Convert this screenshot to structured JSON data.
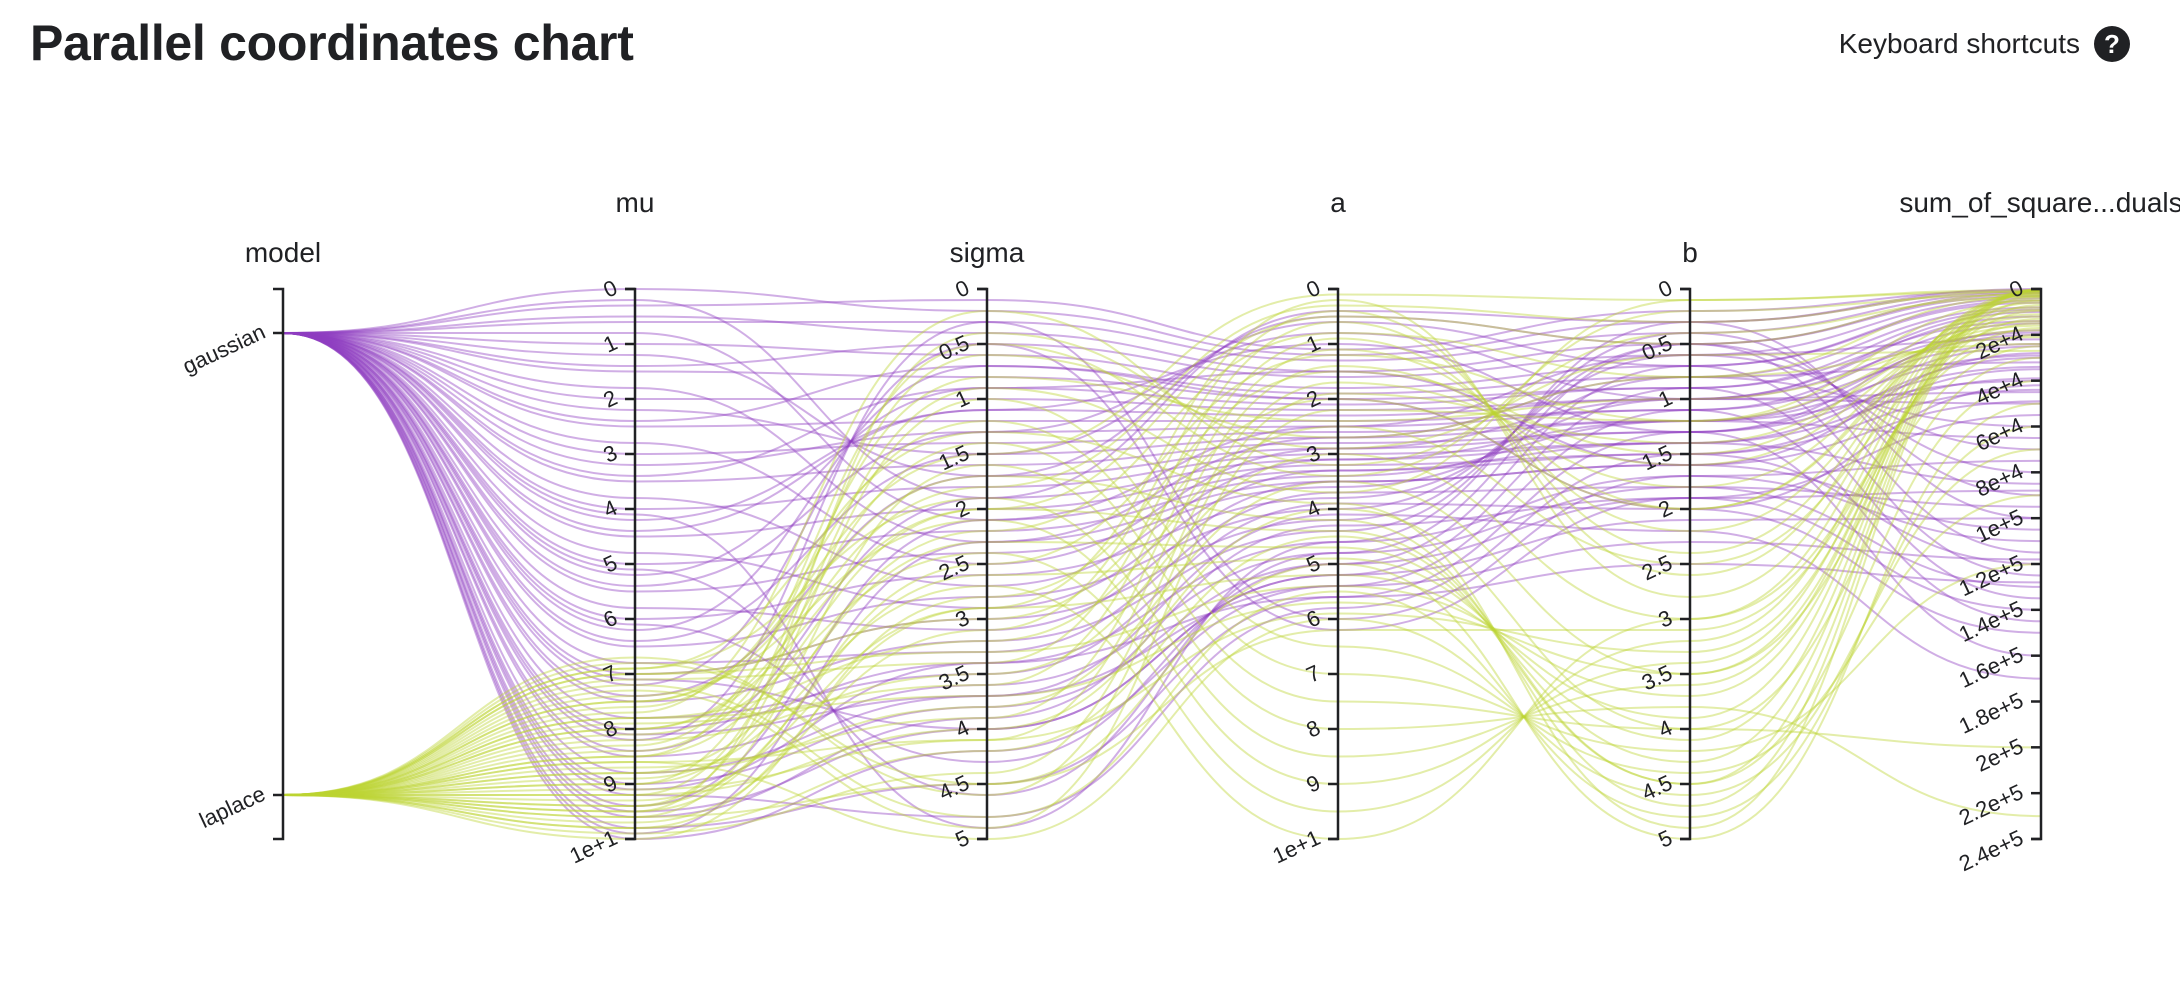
{
  "header": {
    "title": "Parallel coordinates chart",
    "shortcuts_label": "Keyboard shortcuts",
    "help_icon": "help-circle-icon"
  },
  "colors": {
    "gaussian": "#8e3ec0",
    "laplace": "#bcd431",
    "axis": "#202124"
  },
  "chart_data": {
    "type": "parallel-coordinates",
    "title": "Parallel coordinates chart",
    "axes": [
      {
        "key": "model",
        "label": "model",
        "type": "categorical",
        "categories": [
          "gaussian",
          "laplace"
        ]
      },
      {
        "key": "mu",
        "label": "mu",
        "type": "linear",
        "range": [
          0,
          10
        ],
        "ticks": [
          "0",
          "1",
          "2",
          "3",
          "4",
          "5",
          "6",
          "7",
          "8",
          "9",
          "1e+1"
        ]
      },
      {
        "key": "sigma",
        "label": "sigma",
        "type": "linear",
        "range": [
          0,
          5
        ],
        "ticks": [
          "0",
          "0.5",
          "1",
          "1.5",
          "2",
          "2.5",
          "3",
          "3.5",
          "4",
          "4.5",
          "5"
        ]
      },
      {
        "key": "a",
        "label": "a",
        "type": "linear",
        "range": [
          0,
          10
        ],
        "ticks": [
          "0",
          "1",
          "2",
          "3",
          "4",
          "5",
          "6",
          "7",
          "8",
          "9",
          "1e+1"
        ]
      },
      {
        "key": "b",
        "label": "b",
        "type": "linear",
        "range": [
          0,
          5
        ],
        "ticks": [
          "0",
          "0.5",
          "1",
          "1.5",
          "2",
          "2.5",
          "3",
          "3.5",
          "4",
          "4.5",
          "5"
        ]
      },
      {
        "key": "ssr",
        "label": "sum_of_square...duals",
        "type": "linear",
        "range": [
          0,
          240000
        ],
        "ticks": [
          "0",
          "2e+4",
          "4e+4",
          "6e+4",
          "8e+4",
          "1e+5",
          "1.2e+5",
          "1.4e+5",
          "1.6e+5",
          "1.8e+5",
          "2e+5",
          "2.2e+5",
          "2.4e+5"
        ]
      }
    ],
    "series": [
      {
        "name": "gaussian",
        "color_key": "gaussian",
        "records": [
          [
            0.0,
            0.2,
            1.2,
            0.3,
            0
          ],
          [
            0.5,
            0.4,
            1.5,
            0.5,
            2000
          ],
          [
            1.0,
            0.6,
            1.8,
            0.7,
            5000
          ],
          [
            1.5,
            0.8,
            2.0,
            0.9,
            9000
          ],
          [
            2.0,
            1.0,
            2.2,
            1.0,
            12000
          ],
          [
            2.5,
            1.2,
            2.4,
            1.1,
            15000
          ],
          [
            3.0,
            1.4,
            2.6,
            1.2,
            20000
          ],
          [
            3.5,
            1.6,
            2.8,
            1.3,
            25000
          ],
          [
            4.0,
            1.8,
            3.0,
            1.4,
            30000
          ],
          [
            4.5,
            2.0,
            3.2,
            1.5,
            35000
          ],
          [
            5.0,
            2.2,
            3.4,
            1.2,
            40000
          ],
          [
            5.5,
            2.4,
            3.6,
            1.0,
            50000
          ],
          [
            6.0,
            2.6,
            3.8,
            0.8,
            60000
          ],
          [
            6.5,
            2.8,
            4.0,
            0.6,
            70000
          ],
          [
            7.0,
            3.0,
            4.2,
            0.5,
            80000
          ],
          [
            7.5,
            3.2,
            4.4,
            0.4,
            90000
          ],
          [
            8.0,
            3.4,
            4.6,
            0.3,
            100000
          ],
          [
            8.5,
            3.6,
            4.8,
            0.5,
            115000
          ],
          [
            9.0,
            3.8,
            5.0,
            0.7,
            125000
          ],
          [
            9.5,
            4.0,
            5.2,
            0.9,
            135000
          ],
          [
            10.0,
            4.2,
            5.4,
            1.1,
            145000
          ],
          [
            9.8,
            4.5,
            5.6,
            1.3,
            160000
          ],
          [
            9.2,
            4.8,
            5.8,
            1.5,
            120000
          ],
          [
            8.2,
            0.3,
            6.0,
            1.7,
            75000
          ],
          [
            7.2,
            0.5,
            6.2,
            1.9,
            55000
          ],
          [
            6.2,
            0.7,
            2.0,
            2.0,
            42000
          ],
          [
            5.2,
            0.9,
            1.5,
            1.6,
            28000
          ],
          [
            4.2,
            1.1,
            1.0,
            1.3,
            18000
          ],
          [
            3.2,
            1.3,
            0.8,
            1.0,
            10000
          ],
          [
            2.2,
            1.5,
            0.6,
            0.7,
            6000
          ],
          [
            1.2,
            1.7,
            0.5,
            0.5,
            3000
          ],
          [
            0.2,
            1.9,
            0.4,
            0.3,
            1000
          ],
          [
            0.8,
            2.1,
            2.5,
            0.6,
            22000
          ],
          [
            1.8,
            2.3,
            2.7,
            0.8,
            32000
          ],
          [
            2.8,
            2.5,
            2.9,
            1.0,
            45000
          ],
          [
            3.8,
            2.7,
            3.1,
            1.2,
            65000
          ],
          [
            4.8,
            2.9,
            3.3,
            1.4,
            85000
          ],
          [
            5.8,
            3.1,
            3.5,
            1.6,
            105000
          ],
          [
            6.8,
            3.3,
            3.7,
            1.8,
            130000
          ],
          [
            7.8,
            3.5,
            3.9,
            2.0,
            150000
          ],
          [
            8.8,
            3.7,
            4.1,
            2.2,
            170000
          ],
          [
            9.6,
            3.9,
            4.3,
            1.9,
            140000
          ],
          [
            0.3,
            0.1,
            1.1,
            0.2,
            500
          ],
          [
            0.6,
            0.3,
            1.3,
            0.4,
            1500
          ],
          [
            1.4,
            0.5,
            1.6,
            0.6,
            4000
          ],
          [
            2.4,
            0.7,
            1.9,
            0.8,
            8000
          ],
          [
            3.4,
            0.9,
            2.1,
            0.9,
            14000
          ],
          [
            4.4,
            1.1,
            2.3,
            1.0,
            19000
          ],
          [
            5.4,
            1.3,
            2.5,
            1.1,
            24000
          ],
          [
            6.4,
            1.5,
            2.7,
            1.2,
            29000
          ],
          [
            7.4,
            1.7,
            2.9,
            1.3,
            34000
          ],
          [
            8.4,
            1.9,
            3.1,
            1.4,
            39000
          ],
          [
            9.4,
            2.1,
            3.3,
            1.5,
            44000
          ],
          [
            9.9,
            2.3,
            3.5,
            1.6,
            49000
          ],
          [
            4.1,
            4.9,
            4.6,
            1.7,
            110000
          ],
          [
            5.1,
            4.6,
            4.8,
            1.8,
            95000
          ],
          [
            6.1,
            4.3,
            5.0,
            1.9,
            88000
          ],
          [
            7.1,
            4.0,
            5.2,
            2.1,
            100000
          ],
          [
            8.1,
            3.7,
            5.4,
            2.3,
            118000
          ],
          [
            9.1,
            3.4,
            5.6,
            2.5,
            128000
          ]
        ]
      },
      {
        "name": "laplace",
        "color_key": "laplace",
        "records": [
          [
            7.5,
            1.5,
            0.1,
            0.1,
            500
          ],
          [
            8.0,
            1.8,
            0.3,
            0.3,
            1000
          ],
          [
            8.5,
            2.0,
            0.5,
            0.5,
            2000
          ],
          [
            9.0,
            2.2,
            0.8,
            0.8,
            3000
          ],
          [
            9.5,
            2.5,
            1.2,
            1.2,
            5000
          ],
          [
            10.0,
            2.8,
            1.5,
            1.5,
            8000
          ],
          [
            7.0,
            3.0,
            2.0,
            2.0,
            12000
          ],
          [
            7.8,
            3.2,
            2.5,
            2.5,
            15000
          ],
          [
            8.2,
            3.5,
            3.0,
            3.0,
            20000
          ],
          [
            8.8,
            3.8,
            3.5,
            3.5,
            25000
          ],
          [
            9.2,
            4.0,
            4.0,
            4.0,
            30000
          ],
          [
            9.8,
            4.2,
            4.5,
            4.5,
            40000
          ],
          [
            6.8,
            4.5,
            5.0,
            5.0,
            50000
          ],
          [
            7.2,
            4.8,
            5.5,
            4.8,
            60000
          ],
          [
            8.6,
            5.0,
            6.0,
            4.6,
            70000
          ],
          [
            9.4,
            1.0,
            6.5,
            4.4,
            90000
          ],
          [
            7.6,
            1.2,
            7.0,
            4.2,
            120000
          ],
          [
            8.4,
            1.4,
            7.5,
            4.0,
            200000
          ],
          [
            9.6,
            1.6,
            8.0,
            3.8,
            230000
          ],
          [
            6.9,
            1.9,
            8.5,
            3.6,
            5000
          ],
          [
            7.4,
            2.1,
            9.0,
            3.4,
            3000
          ],
          [
            8.1,
            2.4,
            9.5,
            3.2,
            1500
          ],
          [
            8.9,
            2.7,
            10.0,
            3.0,
            1000
          ],
          [
            9.3,
            2.9,
            0.2,
            2.8,
            500
          ],
          [
            9.7,
            3.1,
            0.4,
            2.6,
            2000
          ],
          [
            7.1,
            3.4,
            0.6,
            2.4,
            4000
          ],
          [
            7.9,
            3.6,
            0.9,
            2.2,
            6000
          ],
          [
            8.7,
            3.9,
            1.1,
            2.0,
            9000
          ],
          [
            9.1,
            4.1,
            1.4,
            1.8,
            11000
          ],
          [
            9.9,
            4.4,
            1.7,
            1.6,
            14000
          ],
          [
            6.7,
            4.6,
            1.9,
            1.4,
            16000
          ],
          [
            7.3,
            4.9,
            2.2,
            1.2,
            18000
          ],
          [
            8.3,
            0.8,
            2.4,
            1.0,
            21000
          ],
          [
            9.0,
            0.6,
            2.7,
            0.8,
            24000
          ],
          [
            9.5,
            0.4,
            2.9,
            0.6,
            27000
          ],
          [
            7.7,
            0.2,
            3.2,
            0.4,
            3500
          ],
          [
            8.5,
            0.5,
            3.4,
            0.2,
            2500
          ],
          [
            9.2,
            0.9,
            3.7,
            0.1,
            1200
          ],
          [
            6.9,
            1.3,
            3.9,
            4.9,
            800
          ],
          [
            7.5,
            1.7,
            4.2,
            4.7,
            600
          ],
          [
            8.0,
            2.0,
            4.4,
            4.5,
            400
          ],
          [
            8.8,
            2.3,
            4.7,
            4.3,
            300
          ],
          [
            9.4,
            2.6,
            4.9,
            4.1,
            200
          ],
          [
            9.8,
            2.9,
            5.2,
            3.9,
            100
          ],
          [
            7.0,
            3.3,
            5.4,
            3.7,
            7000
          ],
          [
            7.8,
            3.7,
            5.7,
            3.5,
            9500
          ],
          [
            8.6,
            4.1,
            5.9,
            3.3,
            13000
          ],
          [
            9.6,
            4.5,
            6.2,
            3.1,
            17000
          ]
        ]
      }
    ]
  }
}
